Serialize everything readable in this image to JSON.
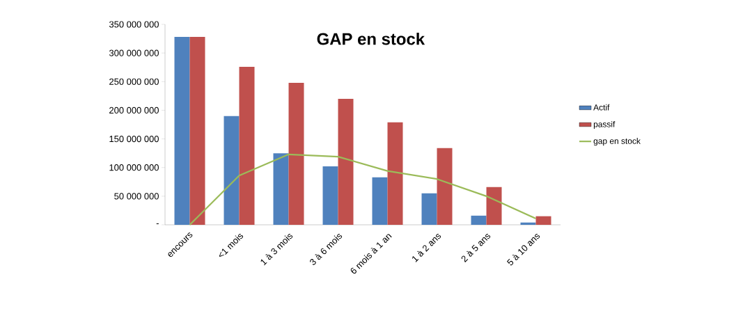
{
  "chart_data": {
    "type": "bar",
    "title": "GAP en stock",
    "categories": [
      "encours",
      "<1 mois",
      "1 à 3 mois",
      "3 à 6 mois",
      "6 mois à 1 an",
      "1 à 2 ans",
      "2 à 5 ans",
      "5 à 10 ans"
    ],
    "series": [
      {
        "name": "Actif",
        "color": "#4f81bd",
        "values": [
          328000000,
          190000000,
          125000000,
          102000000,
          83000000,
          55000000,
          16000000,
          4000000
        ]
      },
      {
        "name": "passif",
        "color": "#c0504d",
        "values": [
          328000000,
          276000000,
          248000000,
          220000000,
          179000000,
          134000000,
          66000000,
          15000000
        ]
      },
      {
        "name": "gap en stock",
        "type": "line",
        "color": "#9bbb59",
        "values": [
          0,
          86000000,
          123000000,
          119000000,
          94000000,
          80000000,
          50000000,
          11000000
        ]
      }
    ],
    "ylim": [
      0,
      350000000
    ],
    "yticks": [
      {
        "value": 0,
        "label": "-"
      },
      {
        "value": 50000000,
        "label": "50 000 000"
      },
      {
        "value": 100000000,
        "label": "100 000 000"
      },
      {
        "value": 150000000,
        "label": "150 000 000"
      },
      {
        "value": 200000000,
        "label": "200 000 000"
      },
      {
        "value": 250000000,
        "label": "250 000 000"
      },
      {
        "value": 300000000,
        "label": "300 000 000"
      },
      {
        "value": 350000000,
        "label": "350 000 000"
      }
    ],
    "legend": "right",
    "marker": "none"
  }
}
